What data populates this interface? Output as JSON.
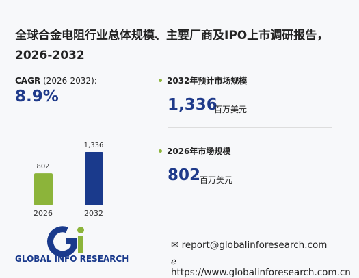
{
  "title": "全球合金电阻行业总体规模、主要厂商及IPO上市调研报告，2026-2032",
  "cagr": {
    "label": "CAGR",
    "period": " (2026-2032):",
    "value": "8.9%"
  },
  "stats": [
    {
      "label": "2032年预计市场规模",
      "value": "1,336",
      "unit": "百万美元"
    },
    {
      "label": "2026年市场规模",
      "value": "802",
      "unit": "百万美元"
    }
  ],
  "chart_data": {
    "type": "bar",
    "categories": [
      "2026",
      "2032"
    ],
    "values": [
      802,
      1336
    ],
    "value_labels": [
      "802",
      "1,336"
    ],
    "colors": [
      "#8cb43a",
      "#1a3a8c"
    ]
  },
  "footer": {
    "logo": "GLOBAL INFO RESEARCH",
    "email": "report@globalinforesearch.com",
    "website": "https://www.globalinforesearch.com.cn"
  }
}
